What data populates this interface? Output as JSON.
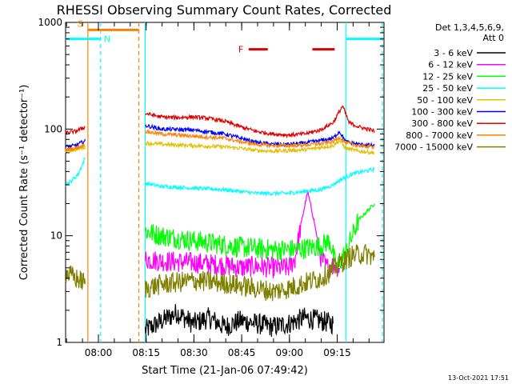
{
  "chart_data": {
    "type": "line",
    "title": "RHESSI Observing Summary Count Rates, Corrected",
    "xlabel": "Start Time (21-Jan-06 07:49:42)",
    "ylabel": "Corrected Count Rate (s⁻¹ detector⁻¹)",
    "yscale": "log",
    "ylim": [
      1,
      1000
    ],
    "xlim_minutes_after_start": [
      0,
      100
    ],
    "y_ticks": [
      "1",
      "10",
      "100",
      "1000"
    ],
    "x_ticks": [
      {
        "label": "08:00",
        "minute": 10.3
      },
      {
        "label": "08:15",
        "minute": 25.3
      },
      {
        "label": "08:30",
        "minute": 40.3
      },
      {
        "label": "08:45",
        "minute": 55.3
      },
      {
        "label": "09:00",
        "minute": 70.3
      },
      {
        "label": "09:15",
        "minute": 85.3
      }
    ],
    "legend_header": [
      "Det 1,3,4,5,6,9,",
      "Att 0"
    ],
    "legend_position": "right",
    "gaps_minutes": [
      [
        6.5,
        25.0
      ]
    ],
    "series": [
      {
        "name": "3 - 6 keV",
        "color": "#000000",
        "x": [
          25.0,
          35,
          40,
          45,
          50,
          55,
          60,
          65,
          70,
          75,
          80,
          84
        ],
        "y": [
          1.3,
          1.9,
          1.5,
          1.7,
          1.4,
          1.6,
          1.5,
          1.4,
          1.5,
          1.7,
          1.6,
          1.5
        ]
      },
      {
        "name": "6 - 12 keV",
        "color": "#ff00ff",
        "x": [
          25.0,
          30,
          40,
          50,
          55,
          60,
          65,
          70,
          72,
          74,
          76,
          78,
          80,
          82,
          84,
          86
        ],
        "y": [
          6.0,
          5.8,
          5.6,
          5.3,
          5.0,
          5.2,
          5.0,
          5.0,
          6.0,
          13,
          26,
          14,
          6.5,
          5.0,
          5.4,
          5.0
        ]
      },
      {
        "name": "12 - 25 keV",
        "color": "#00ff00",
        "x": [
          25.0,
          30,
          40,
          50,
          55,
          60,
          65,
          70,
          75,
          80,
          83,
          85,
          88,
          92,
          97
        ],
        "y": [
          11.0,
          10.0,
          9.0,
          8.2,
          7.8,
          7.6,
          7.4,
          7.4,
          7.6,
          8.0,
          9.0,
          5.0,
          7.0,
          14.0,
          20.0
        ]
      },
      {
        "name": "25 - 50 keV",
        "color": "#00ffff",
        "x": [
          0,
          2,
          4,
          6.3,
          25.0,
          30,
          40,
          50,
          55,
          60,
          65,
          70,
          75,
          80,
          84,
          86,
          90,
          97
        ],
        "y": [
          30,
          33,
          38,
          55,
          31,
          29,
          28,
          27,
          26,
          25,
          25,
          25,
          26,
          27,
          30,
          33,
          38,
          42
        ]
      },
      {
        "name": "50 - 100 keV",
        "color": "#e0c000",
        "x": [
          0,
          3,
          6.3,
          25.0,
          30,
          40,
          50,
          55,
          60,
          65,
          70,
          75,
          80,
          84,
          86,
          88,
          92,
          97
        ],
        "y": [
          62,
          64,
          68,
          74,
          72,
          70,
          68,
          66,
          63,
          62,
          63,
          64,
          67,
          70,
          78,
          66,
          62,
          60
        ]
      },
      {
        "name": "100 - 300 keV",
        "color": "#0000ff",
        "x": [
          0,
          3,
          6.3,
          25.0,
          30,
          40,
          50,
          55,
          60,
          65,
          70,
          75,
          80,
          84,
          86,
          88,
          92,
          97
        ],
        "y": [
          68,
          70,
          78,
          108,
          100,
          98,
          90,
          82,
          75,
          72,
          72,
          74,
          78,
          82,
          95,
          76,
          72,
          70
        ]
      },
      {
        "name": "300 - 800 keV",
        "color": "#e00000",
        "x": [
          0,
          3,
          6.3,
          25.0,
          30,
          35,
          40,
          45,
          50,
          55,
          60,
          65,
          70,
          75,
          80,
          84,
          87,
          89,
          92,
          97
        ],
        "y": [
          92,
          95,
          105,
          140,
          130,
          128,
          130,
          126,
          118,
          105,
          95,
          90,
          88,
          90,
          98,
          115,
          165,
          115,
          105,
          96
        ]
      },
      {
        "name": "800 - 7000 keV",
        "color": "#ff8000",
        "x": [
          0,
          3,
          6.3,
          25.0,
          30,
          40,
          50,
          55,
          60,
          65,
          70,
          75,
          80,
          84,
          86,
          88,
          92,
          97
        ],
        "y": [
          64,
          66,
          72,
          95,
          90,
          86,
          82,
          76,
          72,
          70,
          70,
          71,
          73,
          76,
          84,
          74,
          70,
          68
        ]
      },
      {
        "name": "7000 - 15000 keV",
        "color": "#808000",
        "x": [
          0,
          3,
          6.3,
          25.0,
          30,
          40,
          50,
          55,
          60,
          65,
          70,
          75,
          80,
          84,
          86,
          90,
          94,
          97
        ],
        "y": [
          4.5,
          4.0,
          3.6,
          3.2,
          3.5,
          3.8,
          3.6,
          3.4,
          3.2,
          3.0,
          3.2,
          3.6,
          4.0,
          4.8,
          5.5,
          6.5,
          6.8,
          6.3
        ]
      }
    ],
    "annotations": [
      {
        "label": "S",
        "color": "#ff8000",
        "x_start": 7.0,
        "x_end": 23.0,
        "y_level": 850
      },
      {
        "label": "N",
        "color": "#00ffff",
        "x_start": 0,
        "x_end": 11.0,
        "y_level": 700
      },
      {
        "label": "F",
        "color": "#e00000",
        "segments": [
          [
            57.5,
            63.5
          ],
          [
            77.5,
            84.5
          ]
        ],
        "y_level": 560
      },
      {
        "label": "",
        "color": "#00ffff",
        "x_start": 88.0,
        "x_end": 99.5,
        "y_level": 700
      }
    ],
    "vertical_markers": [
      {
        "minute": 7.0,
        "color": "#ff8000",
        "style": "solid"
      },
      {
        "minute": 11.0,
        "color": "#00ffff",
        "style": "dashed"
      },
      {
        "minute": 23.0,
        "color": "#ff8000",
        "style": "dashed"
      },
      {
        "minute": 25.0,
        "color": "#00ffff",
        "style": "solid"
      },
      {
        "minute": 88.0,
        "color": "#00ffff",
        "style": "solid"
      },
      {
        "minute": 99.5,
        "color": "#00ffff",
        "style": "dashed"
      }
    ]
  },
  "footer": {
    "timestamp": "13-Oct-2021 17:51"
  }
}
